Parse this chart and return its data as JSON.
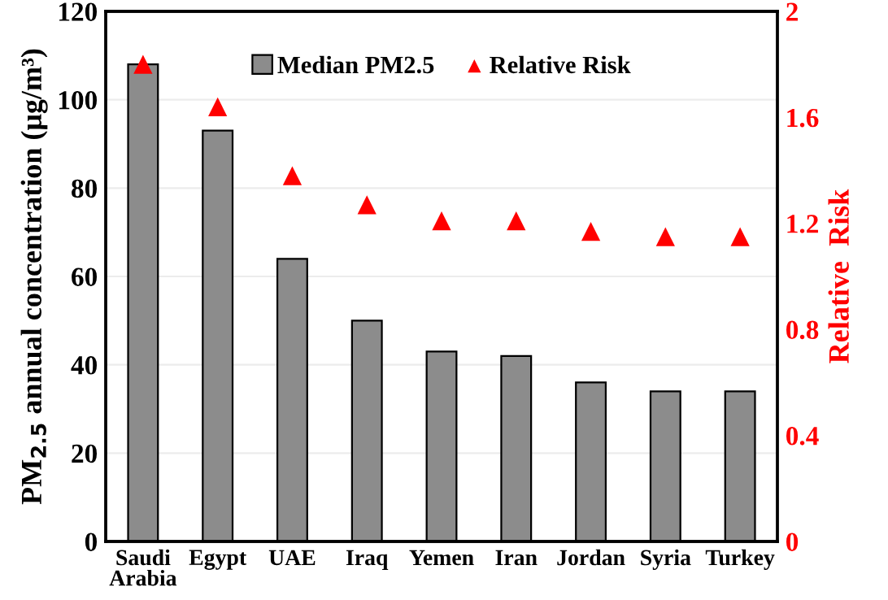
{
  "chart_data": {
    "type": "bar",
    "categories": [
      "Saudi\nArabia",
      "Egypt",
      "UAE",
      "Iraq",
      "Yemen",
      "Iran",
      "Jordan",
      "Syria",
      "Turkey"
    ],
    "series": [
      {
        "name": "Median PM2.5",
        "color": "#8c8c8c",
        "values": [
          108,
          93,
          64,
          50,
          43,
          42,
          36,
          34,
          34
        ]
      },
      {
        "name": "Relative Risk",
        "type": "scatter",
        "axis": "y2",
        "color": "#ff0000",
        "marker": "triangle",
        "values": [
          1.8,
          1.64,
          1.38,
          1.27,
          1.21,
          1.21,
          1.17,
          1.15,
          1.15
        ]
      }
    ],
    "ylabel": "PM$_{2.5}$ annual concentration (μg/m³)",
    "y2label": "Relative  Risk",
    "ylim": [
      0,
      120
    ],
    "yticks": [
      0,
      20,
      40,
      60,
      80,
      100,
      120
    ],
    "y2lim": [
      0,
      2
    ],
    "y2ticks": [
      0,
      0.4,
      0.8,
      1.2,
      1.6,
      2
    ],
    "grid": "y",
    "legend": "top"
  }
}
